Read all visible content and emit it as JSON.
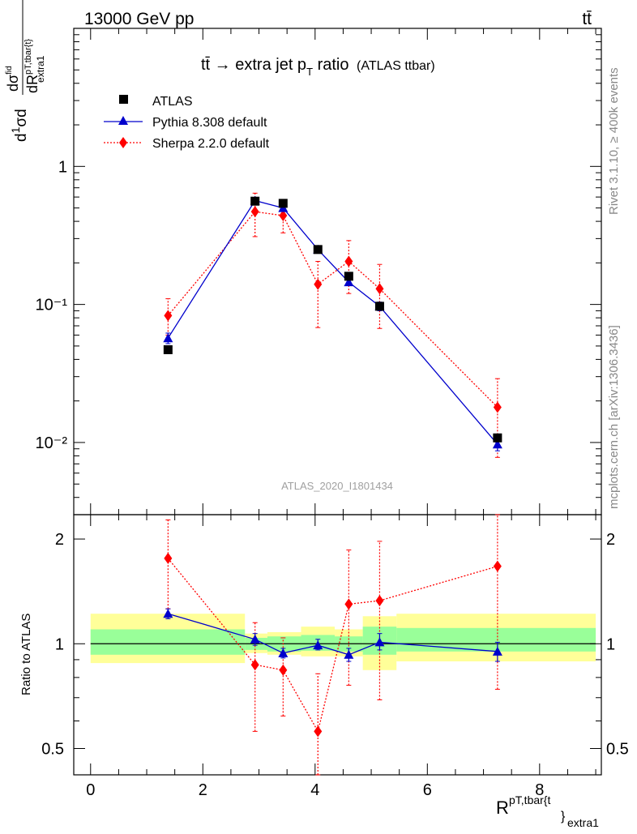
{
  "header": {
    "beam": "13000 GeV pp",
    "process": "tt̄"
  },
  "side_labels": {
    "rivet": "Rivet 3.1.10, ≥ 400k events",
    "mcplots": "mcplots.cern.ch [arXiv:1306.3436]"
  },
  "watermark": "ATLAS_2020_I1801434",
  "legend": {
    "entries": [
      "ATLAS",
      "Pythia 8.308 default",
      "Sherpa 2.2.0 default"
    ]
  },
  "colors": {
    "data": "#000000",
    "pythia": "#0000cc",
    "sherpa": "#ff0000",
    "band_inner": "#99ff99",
    "band_outer": "#ffff99"
  },
  "chart_data": [
    {
      "type": "scatter",
      "panel": "main",
      "title": "tt̄ → extra jet pT ratio",
      "title_suffix": "(ATLAS ttbar)",
      "ylabel": "1/σ dσ/dR^{pT,tbar{t}}_{extra1}",
      "yscale": "log",
      "ylim": [
        0.003,
        10
      ],
      "xlim": [
        -0.3,
        9.1
      ],
      "y_ticks": [
        {
          "value": 0.01,
          "label": "10⁻²"
        },
        {
          "value": 0.1,
          "label": "10⁻¹"
        },
        {
          "value": 1,
          "label": "1"
        }
      ],
      "series": [
        {
          "name": "ATLAS",
          "marker": "square",
          "x": [
            1.38,
            2.93,
            3.43,
            4.05,
            4.6,
            5.15,
            7.25
          ],
          "y": [
            0.047,
            0.56,
            0.54,
            0.25,
            0.16,
            0.097,
            0.0108
          ]
        },
        {
          "name": "Pythia 8.308 default",
          "marker": "triangle",
          "line": "solid",
          "x": [
            1.38,
            2.93,
            3.43,
            4.05,
            4.6,
            5.15,
            7.25
          ],
          "y": [
            0.057,
            0.565,
            0.5,
            0.25,
            0.145,
            0.097,
            0.0097
          ],
          "yerr_low": [
            0.052,
            0.54,
            0.48,
            0.24,
            0.138,
            0.09,
            0.0087
          ],
          "yerr_high": [
            0.062,
            0.59,
            0.52,
            0.26,
            0.152,
            0.104,
            0.0107
          ]
        },
        {
          "name": "Sherpa 2.2.0 default",
          "marker": "diamond",
          "line": "dotted",
          "x": [
            1.38,
            2.93,
            3.43,
            4.05,
            4.6,
            5.15,
            7.25
          ],
          "y": [
            0.083,
            0.47,
            0.44,
            0.14,
            0.205,
            0.13,
            0.018
          ],
          "yerr_low": [
            0.06,
            0.31,
            0.33,
            0.068,
            0.12,
            0.067,
            0.0078
          ],
          "yerr_high": [
            0.11,
            0.64,
            0.55,
            0.205,
            0.29,
            0.195,
            0.029
          ]
        }
      ]
    },
    {
      "type": "scatter",
      "panel": "ratio",
      "ylabel": "Ratio to ATLAS",
      "xlabel": "R^{pT,tbar{t}}_{extra1}",
      "yscale": "log",
      "ylim": [
        0.42,
        2.35
      ],
      "xlim": [
        -0.3,
        9.1
      ],
      "x_ticks": [
        0,
        2,
        4,
        6,
        8
      ],
      "y_ticks": [
        0.5,
        1,
        2
      ],
      "bands": [
        {
          "x0": 0.0,
          "x1": 2.75,
          "inner": [
            0.93,
            1.1
          ],
          "outer": [
            0.88,
            1.22
          ]
        },
        {
          "x0": 2.75,
          "x1": 3.15,
          "inner": [
            0.96,
            1.04
          ],
          "outer": [
            0.94,
            1.07
          ]
        },
        {
          "x0": 3.15,
          "x1": 3.75,
          "inner": [
            0.95,
            1.05
          ],
          "outer": [
            0.93,
            1.08
          ]
        },
        {
          "x0": 3.75,
          "x1": 4.35,
          "inner": [
            0.955,
            1.06
          ],
          "outer": [
            0.92,
            1.12
          ]
        },
        {
          "x0": 4.35,
          "x1": 4.85,
          "inner": [
            0.95,
            1.05
          ],
          "outer": [
            0.92,
            1.1
          ]
        },
        {
          "x0": 4.85,
          "x1": 5.45,
          "inner": [
            0.93,
            1.12
          ],
          "outer": [
            0.84,
            1.2
          ]
        },
        {
          "x0": 5.45,
          "x1": 9.0,
          "inner": [
            0.95,
            1.11
          ],
          "outer": [
            0.89,
            1.22
          ]
        }
      ],
      "series": [
        {
          "name": "Pythia 8.308 default",
          "marker": "triangle",
          "line": "solid",
          "x": [
            1.38,
            2.93,
            3.43,
            4.05,
            4.6,
            5.15,
            7.25
          ],
          "y": [
            1.22,
            1.03,
            0.94,
            0.99,
            0.93,
            1.01,
            0.95
          ],
          "yerr_low": [
            1.18,
            0.99,
            0.91,
            0.96,
            0.89,
            0.96,
            0.89
          ],
          "yerr_high": [
            1.26,
            1.07,
            0.97,
            1.03,
            0.97,
            1.07,
            1.01
          ]
        },
        {
          "name": "Sherpa 2.2.0 default",
          "marker": "diamond",
          "line": "dotted",
          "x": [
            1.38,
            2.93,
            3.43,
            4.05,
            4.6,
            5.15,
            7.25
          ],
          "y": [
            1.76,
            0.87,
            0.84,
            0.56,
            1.3,
            1.33,
            1.67
          ],
          "yerr_low": [
            1.26,
            0.56,
            0.62,
            0.42,
            0.76,
            0.69,
            0.74
          ],
          "yerr_high": [
            2.27,
            1.15,
            1.04,
            0.82,
            1.86,
            1.97,
            2.35
          ]
        }
      ]
    }
  ]
}
